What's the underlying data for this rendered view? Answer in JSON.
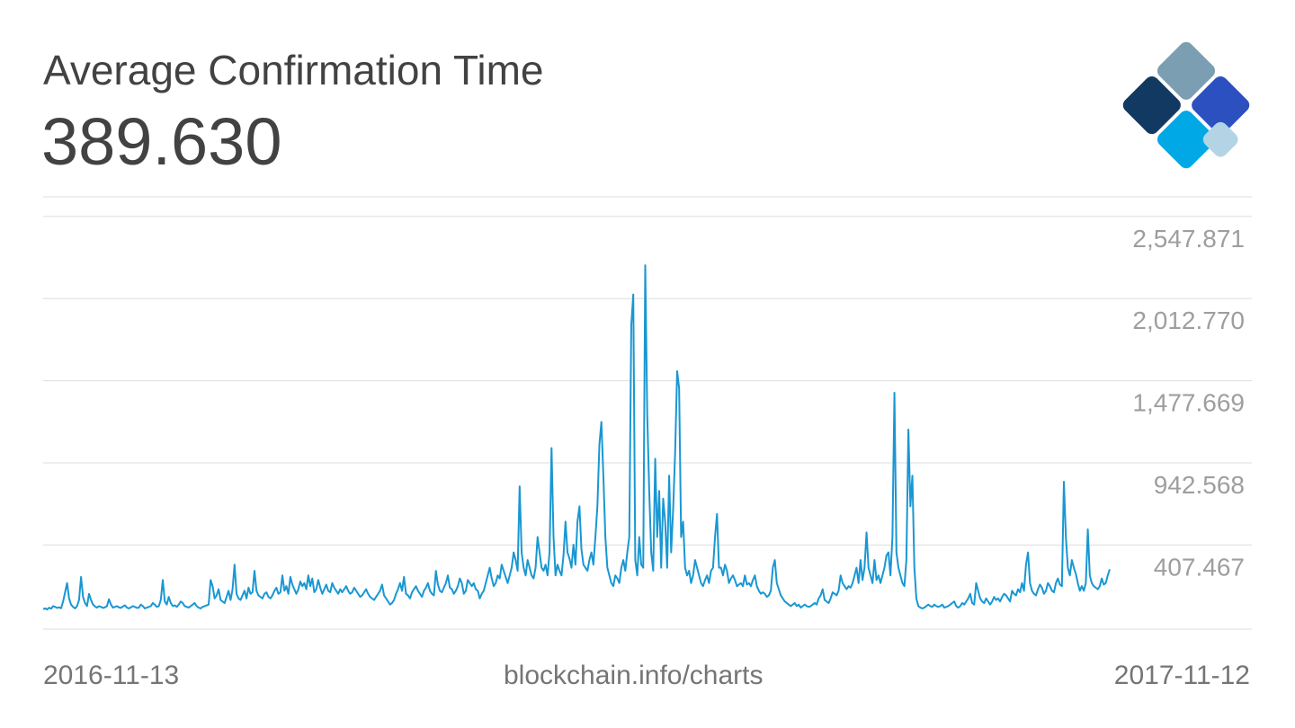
{
  "header": {
    "title": "Average Confirmation Time",
    "current_value": "389.630"
  },
  "footer": {
    "start_date": "2016-11-13",
    "source": "blockchain.info/charts",
    "end_date": "2017-11-12"
  },
  "logo": {
    "icon": "blockchain-logo-icon",
    "colors": [
      "#7c9eb2",
      "#123962",
      "#2c50c0",
      "#00a8e6",
      "#b3d4e5"
    ]
  },
  "colors": {
    "line": "#1997d2",
    "grid": "#dddddd",
    "tick_text": "#9e9e9e"
  },
  "chart_data": {
    "type": "line",
    "title": "Average Confirmation Time",
    "x_start": "2016-11-13",
    "x_end": "2017-11-12",
    "ylim": [
      0,
      2816
    ],
    "y_ticks": [
      407.467,
      942.568,
      1477.669,
      2012.77,
      2547.871
    ],
    "y_tick_labels": [
      "407.467",
      "942.568",
      "1,477.669",
      "2,012.770",
      "2,547.871"
    ],
    "grid": true,
    "series": [
      {
        "values": [
          130,
          135,
          128,
          140,
          133,
          150,
          145,
          138,
          142,
          136,
          180,
          240,
          300,
          200,
          160,
          145,
          135,
          150,
          190,
          340,
          210,
          170,
          150,
          230,
          190,
          160,
          148,
          140,
          150,
          145,
          138,
          142,
          150,
          195,
          160,
          140,
          145,
          150,
          142,
          138,
          148,
          155,
          140,
          135,
          142,
          150,
          145,
          138,
          140,
          160,
          150,
          135,
          140,
          145,
          150,
          170,
          160,
          145,
          150,
          190,
          320,
          180,
          160,
          210,
          170,
          150,
          155,
          145,
          160,
          180,
          170,
          150,
          145,
          140,
          150,
          160,
          170,
          150,
          140,
          135,
          145,
          150,
          155,
          160,
          320,
          280,
          200,
          220,
          260,
          190,
          180,
          170,
          210,
          250,
          190,
          260,
          420,
          230,
          200,
          190,
          220,
          250,
          200,
          270,
          230,
          240,
          380,
          250,
          220,
          210,
          200,
          230,
          240,
          210,
          200,
          220,
          250,
          270,
          230,
          240,
          350,
          250,
          280,
          230,
          340,
          290,
          260,
          230,
          260,
          310,
          280,
          300,
          260,
          350,
          280,
          330,
          240,
          260,
          320,
          270,
          230,
          260,
          290,
          250,
          240,
          300,
          270,
          250,
          230,
          260,
          240,
          260,
          280,
          250,
          230,
          240,
          270,
          250,
          230,
          210,
          220,
          240,
          260,
          230,
          210,
          200,
          190,
          210,
          230,
          250,
          290,
          220,
          200,
          180,
          160,
          170,
          190,
          230,
          260,
          300,
          250,
          340,
          230,
          220,
          200,
          240,
          260,
          280,
          250,
          230,
          210,
          250,
          270,
          300,
          250,
          230,
          220,
          380,
          290,
          250,
          240,
          270,
          300,
          350,
          270,
          260,
          230,
          250,
          280,
          330,
          300,
          230,
          250,
          320,
          300,
          280,
          300,
          260,
          250,
          200,
          230,
          250,
          300,
          350,
          400,
          330,
          280,
          300,
          350,
          330,
          420,
          380,
          340,
          300,
          350,
          400,
          500,
          450,
          380,
          930,
          500,
          400,
          350,
          450,
          400,
          350,
          330,
          400,
          600,
          500,
          400,
          380,
          420,
          350,
          500,
          1180,
          600,
          350,
          420,
          380,
          350,
          480,
          700,
          500,
          460,
          400,
          550,
          420,
          700,
          800,
          520,
          420,
          400,
          380,
          450,
          500,
          420,
          600,
          800,
          1200,
          1350,
          1000,
          600,
          400,
          350,
          300,
          280,
          350,
          330,
          300,
          400,
          450,
          380,
          500,
          600,
          1980,
          2180,
          450,
          350,
          600,
          420,
          400,
          2370,
          1400,
          900,
          500,
          380,
          1110,
          600,
          900,
          400,
          850,
          700,
          400,
          1000,
          500,
          780,
          1150,
          1680,
          1570,
          600,
          700,
          400,
          350,
          380,
          300,
          350,
          450,
          400,
          350,
          300,
          280,
          320,
          350,
          300,
          380,
          400,
          600,
          750,
          400,
          400,
          350,
          420,
          380,
          300,
          330,
          350,
          320,
          280,
          290,
          300,
          280,
          350,
          290,
          300,
          280,
          320,
          350,
          280,
          250,
          230,
          240,
          230,
          210,
          220,
          250,
          400,
          450,
          300,
          260,
          220,
          200,
          180,
          170,
          160,
          150,
          160,
          170,
          150,
          160,
          140,
          150,
          160,
          150,
          145,
          150,
          160,
          170,
          160,
          200,
          220,
          260,
          190,
          180,
          170,
          200,
          240,
          230,
          220,
          250,
          350,
          300,
          280,
          260,
          280,
          270,
          300,
          350,
          400,
          300,
          450,
          320,
          400,
          630,
          400,
          350,
          300,
          450,
          320,
          350,
          300,
          350,
          400,
          480,
          500,
          350,
          600,
          1540,
          500,
          400,
          350,
          300,
          280,
          450,
          1300,
          800,
          1000,
          400,
          200,
          150,
          140,
          135,
          140,
          150,
          160,
          150,
          145,
          160,
          150,
          145,
          150,
          160,
          140,
          145,
          150,
          160,
          170,
          180,
          150,
          140,
          150,
          170,
          160,
          180,
          200,
          230,
          170,
          160,
          300,
          250,
          200,
          180,
          170,
          200,
          180,
          160,
          180,
          210,
          190,
          200,
          180,
          210,
          230,
          220,
          200,
          180,
          250,
          230,
          220,
          260,
          240,
          300,
          250,
          420,
          500,
          300,
          250,
          230,
          220,
          260,
          290,
          270,
          230,
          250,
          300,
          280,
          250,
          240,
          300,
          330,
          290,
          280,
          960,
          600,
          400,
          350,
          450,
          400,
          360,
          300,
          250,
          280,
          250,
          300,
          650,
          350,
          300,
          280,
          270,
          260,
          280,
          330,
          290,
          300,
          350,
          390
        ]
      }
    ]
  }
}
